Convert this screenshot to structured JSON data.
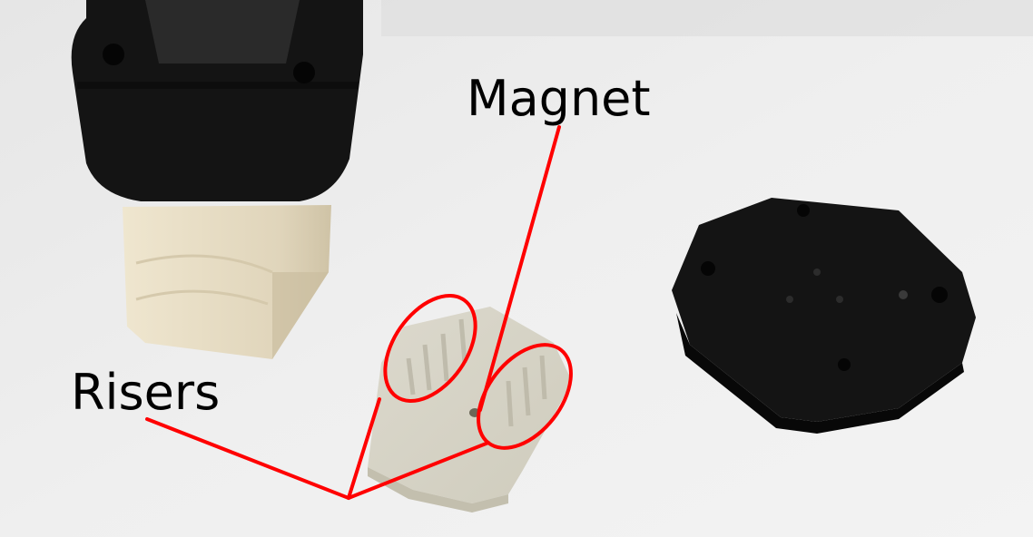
{
  "labels": {
    "magnet": "Magnet",
    "risers": "Risers"
  },
  "colors": {
    "annotation": "#ff0000",
    "background": "#ececec",
    "printed_part": "#141414",
    "wood_block": "#e3dac4",
    "translucent_part": "#d9d6c9"
  }
}
